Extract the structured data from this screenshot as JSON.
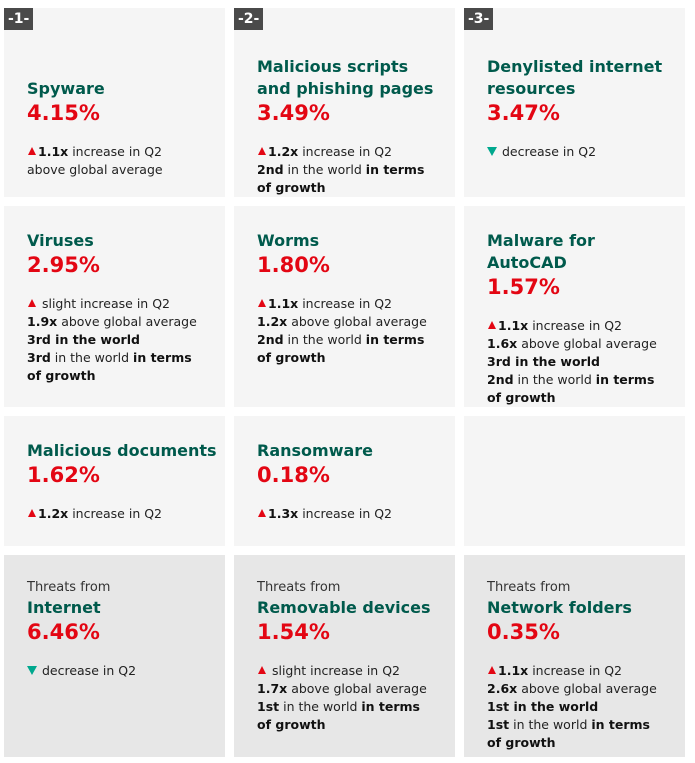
{
  "rows": [
    [
      {
        "badge": "-1-",
        "title_lines": [
          "Spyware"
        ],
        "value": "4.15%",
        "trend": "up",
        "details": [
          [
            {
              "text": "1.1x",
              "bold": true
            },
            {
              "text": " increase in Q2"
            }
          ],
          [
            {
              "text": "above global average"
            }
          ]
        ]
      },
      {
        "badge": "-2-",
        "title_lines": [
          "Malicious scripts",
          "and phishing pages"
        ],
        "value": "3.49%",
        "trend": "up",
        "details": [
          [
            {
              "text": "1.2x",
              "bold": true
            },
            {
              "text": " increase in Q2"
            }
          ],
          [
            {
              "text": "2nd",
              "bold": true
            },
            {
              "text": " in the world "
            },
            {
              "text": "in terms",
              "bold": true
            }
          ],
          [
            {
              "text": "of growth",
              "bold": true
            }
          ]
        ]
      },
      {
        "badge": "-3-",
        "title_lines": [
          "Denylisted internet",
          "resources"
        ],
        "value": "3.47%",
        "trend": "down",
        "details": [
          [
            {
              "text": " decrease in Q2"
            }
          ]
        ]
      }
    ],
    [
      {
        "title_lines": [
          "Viruses"
        ],
        "value": "2.95%",
        "trend": "up",
        "details": [
          [
            {
              "text": " slight increase in Q2"
            }
          ],
          [
            {
              "text": "1.9x",
              "bold": true
            },
            {
              "text": " above global average"
            }
          ],
          [
            {
              "text": "3rd in the world",
              "bold": true
            }
          ],
          [
            {
              "text": "3rd",
              "bold": true
            },
            {
              "text": " in the world "
            },
            {
              "text": "in terms",
              "bold": true
            }
          ],
          [
            {
              "text": "of growth",
              "bold": true
            }
          ]
        ]
      },
      {
        "title_lines": [
          "Worms"
        ],
        "value": "1.80%",
        "trend": "up",
        "details": [
          [
            {
              "text": "1.1x",
              "bold": true
            },
            {
              "text": " increase in Q2"
            }
          ],
          [
            {
              "text": "1.2x",
              "bold": true
            },
            {
              "text": " above global average"
            }
          ],
          [
            {
              "text": "2nd",
              "bold": true
            },
            {
              "text": " in the world "
            },
            {
              "text": "in terms",
              "bold": true
            }
          ],
          [
            {
              "text": "of growth",
              "bold": true
            }
          ]
        ]
      },
      {
        "title_lines": [
          "Malware for",
          "AutoCAD"
        ],
        "value": "1.57%",
        "trend": "up",
        "details": [
          [
            {
              "text": "1.1x",
              "bold": true
            },
            {
              "text": " increase in Q2"
            }
          ],
          [
            {
              "text": "1.6x",
              "bold": true
            },
            {
              "text": " above global average"
            }
          ],
          [
            {
              "text": "3rd in the world",
              "bold": true
            }
          ],
          [
            {
              "text": "2nd",
              "bold": true
            },
            {
              "text": " in the world "
            },
            {
              "text": "in terms",
              "bold": true
            }
          ],
          [
            {
              "text": "of growth",
              "bold": true
            }
          ]
        ]
      }
    ],
    [
      {
        "title_lines": [
          "Malicious documents"
        ],
        "value": "1.62%",
        "trend": "up",
        "details": [
          [
            {
              "text": "1.2x",
              "bold": true
            },
            {
              "text": " increase in Q2"
            }
          ]
        ]
      },
      {
        "title_lines": [
          "Ransomware"
        ],
        "value": "0.18%",
        "trend": "up",
        "details": [
          [
            {
              "text": "1.3x",
              "bold": true
            },
            {
              "text": " increase in Q2"
            }
          ]
        ]
      }
    ],
    [
      {
        "prefix": "Threats from",
        "title_lines": [
          "Internet"
        ],
        "value": "6.46%",
        "trend": "down",
        "details": [
          [
            {
              "text": " decrease in Q2"
            }
          ]
        ]
      },
      {
        "prefix": "Threats from",
        "title_lines": [
          "Removable devices"
        ],
        "value": "1.54%",
        "trend": "up",
        "details": [
          [
            {
              "text": " slight increase in Q2"
            }
          ],
          [
            {
              "text": "1.7x",
              "bold": true
            },
            {
              "text": " above global average"
            }
          ],
          [
            {
              "text": "1st",
              "bold": true
            },
            {
              "text": " in the world "
            },
            {
              "text": "in terms",
              "bold": true
            }
          ],
          [
            {
              "text": "of growth",
              "bold": true
            }
          ]
        ]
      },
      {
        "prefix": "Threats from",
        "title_lines": [
          "Network folders"
        ],
        "value": "0.35%",
        "trend": "up",
        "details": [
          [
            {
              "text": "1.1x",
              "bold": true
            },
            {
              "text": " increase in Q2"
            }
          ],
          [
            {
              "text": "2.6x",
              "bold": true
            },
            {
              "text": " above global average"
            }
          ],
          [
            {
              "text": "1st in the world",
              "bold": true
            }
          ],
          [
            {
              "text": "1st",
              "bold": true
            },
            {
              "text": " in the world "
            },
            {
              "text": "in terms",
              "bold": true
            }
          ],
          [
            {
              "text": "of growth",
              "bold": true
            }
          ]
        ]
      }
    ]
  ]
}
